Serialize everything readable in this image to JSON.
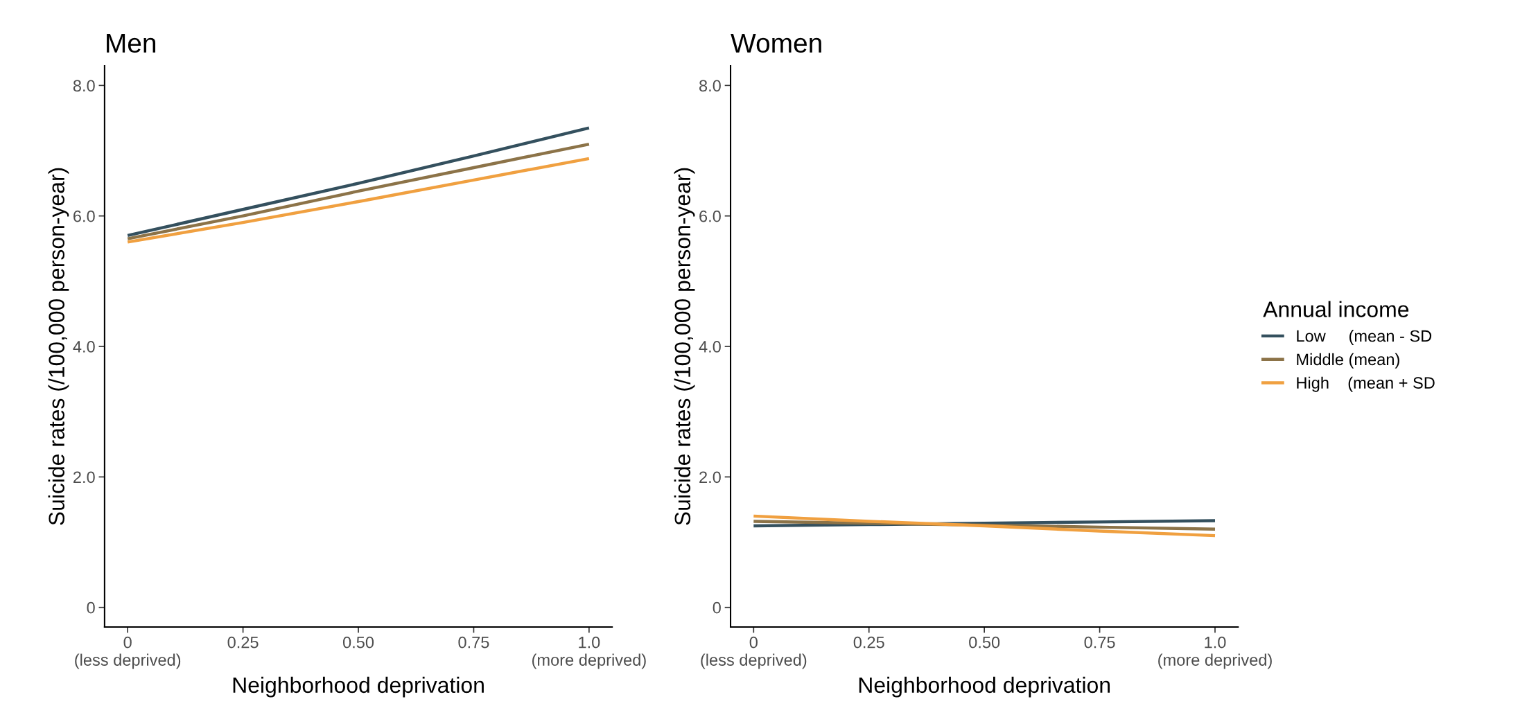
{
  "chart_data": [
    {
      "type": "line",
      "title": "Men",
      "xlabel": "Neighborhood deprivation",
      "ylabel": "Suicide rates (/100,000 person-year)",
      "x": [
        0,
        0.25,
        0.5,
        0.75,
        1.0
      ],
      "series": [
        {
          "color": "#34505e",
          "values": [
            5.7,
            6.1,
            6.5,
            6.92,
            7.35
          ]
        },
        {
          "color": "#8c7348",
          "values": [
            5.65,
            6.0,
            6.38,
            6.74,
            7.1
          ]
        },
        {
          "color": "#f0a040",
          "values": [
            5.6,
            5.9,
            6.22,
            6.55,
            6.88
          ]
        }
      ],
      "xlim": [
        -0.05,
        1.05
      ],
      "ylim": [
        -0.3,
        8.3
      ],
      "xticks": [
        {
          "value": 0,
          "label": "0\n(less deprived)"
        },
        {
          "value": 0.25,
          "label": "0.25"
        },
        {
          "value": 0.5,
          "label": "0.50"
        },
        {
          "value": 0.75,
          "label": "0.75"
        },
        {
          "value": 1.0,
          "label": "1.0\n(more deprived)"
        }
      ],
      "yticks": [
        0,
        {
          "value": 2,
          "label": "2.0"
        },
        {
          "value": 4,
          "label": "4.0"
        },
        {
          "value": 6,
          "label": "6.0"
        },
        {
          "value": 8,
          "label": "8.0"
        }
      ],
      "grid": false,
      "legend": false
    },
    {
      "type": "line",
      "title": "Women",
      "xlabel": "Neighborhood deprivation",
      "ylabel": "Suicide rates (/100,000 person-year)",
      "legend_title": "Annual income",
      "x": [
        0,
        0.25,
        0.5,
        0.75,
        1.0
      ],
      "series": [
        {
          "name": "Low     (mean - SD",
          "color": "#34505e",
          "values": [
            1.25,
            1.27,
            1.29,
            1.31,
            1.33
          ]
        },
        {
          "name": "Middle (mean)",
          "color": "#8c7348",
          "values": [
            1.32,
            1.29,
            1.26,
            1.23,
            1.2
          ]
        },
        {
          "name": "High    (mean + SD",
          "color": "#f0a040",
          "values": [
            1.4,
            1.32,
            1.25,
            1.17,
            1.1
          ]
        }
      ],
      "xlim": [
        -0.05,
        1.05
      ],
      "ylim": [
        -0.3,
        8.3
      ],
      "xticks": [
        {
          "value": 0,
          "label": "0\n(less deprived)"
        },
        {
          "value": 0.25,
          "label": "0.25"
        },
        {
          "value": 0.5,
          "label": "0.50"
        },
        {
          "value": 0.75,
          "label": "0.75"
        },
        {
          "value": 1.0,
          "label": "1.0\n(more deprived)"
        }
      ],
      "yticks": [
        0,
        {
          "value": 2,
          "label": "2.0"
        },
        {
          "value": 4,
          "label": "4.0"
        },
        {
          "value": 6,
          "label": "6.0"
        },
        {
          "value": 8,
          "label": "8.0"
        }
      ],
      "grid": false,
      "legend": "right"
    }
  ]
}
